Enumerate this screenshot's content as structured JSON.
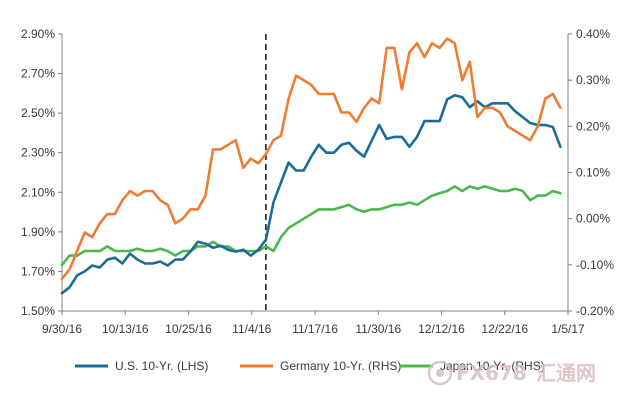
{
  "chart_data": {
    "type": "line",
    "title": "",
    "xlabel": "",
    "ylabel": "",
    "x_ticks": [
      "9/30/16",
      "10/13/16",
      "10/25/16",
      "11/4/16",
      "11/17/16",
      "11/30/16",
      "12/12/16",
      "12/22/16",
      "1/5/17"
    ],
    "x_range": [
      0,
      67
    ],
    "y_left": {
      "range": [
        1.5,
        2.9
      ],
      "ticks": [
        "1.50%",
        "1.70%",
        "1.90%",
        "2.10%",
        "2.30%",
        "2.50%",
        "2.70%",
        "2.90%"
      ]
    },
    "y_right": {
      "range": [
        -0.2,
        0.4
      ],
      "ticks": [
        "-0.20%",
        "-0.10%",
        "0.00%",
        "0.10%",
        "0.20%",
        "0.30%",
        "0.40%"
      ]
    },
    "vertical_marker": {
      "x": 27,
      "style": "dashed"
    },
    "grid": false,
    "legend_position": "bottom",
    "series": [
      {
        "name": "U.S. 10-Yr. (LHS)",
        "axis": "left",
        "color": "#1a6d99",
        "values": [
          1.59,
          1.62,
          1.68,
          1.7,
          1.73,
          1.72,
          1.76,
          1.77,
          1.74,
          1.79,
          1.76,
          1.74,
          1.74,
          1.75,
          1.73,
          1.76,
          1.76,
          1.8,
          1.85,
          1.84,
          1.82,
          1.83,
          1.81,
          1.8,
          1.81,
          1.78,
          1.81,
          1.86,
          2.05,
          2.15,
          2.25,
          2.21,
          2.21,
          2.28,
          2.34,
          2.3,
          2.3,
          2.34,
          2.35,
          2.31,
          2.28,
          2.36,
          2.44,
          2.37,
          2.38,
          2.38,
          2.33,
          2.38,
          2.46,
          2.46,
          2.46,
          2.57,
          2.59,
          2.58,
          2.53,
          2.56,
          2.53,
          2.55,
          2.55,
          2.55,
          2.51,
          2.48,
          2.45,
          2.44,
          2.44,
          2.43,
          2.33
        ]
      },
      {
        "name": "Germany 10-Yr. (RHS)",
        "axis": "right",
        "color": "#f07c33",
        "values": [
          -0.13,
          -0.11,
          -0.07,
          -0.03,
          -0.04,
          -0.01,
          0.01,
          0.01,
          0.04,
          0.06,
          0.05,
          0.06,
          0.06,
          0.04,
          0.03,
          -0.01,
          0.0,
          0.02,
          0.02,
          0.05,
          0.15,
          0.15,
          0.16,
          0.17,
          0.11,
          0.13,
          0.12,
          0.14,
          0.17,
          0.18,
          0.26,
          0.31,
          0.3,
          0.29,
          0.27,
          0.27,
          0.27,
          0.23,
          0.23,
          0.21,
          0.24,
          0.26,
          0.25,
          0.37,
          0.37,
          0.28,
          0.36,
          0.38,
          0.35,
          0.38,
          0.37,
          0.39,
          0.38,
          0.3,
          0.34,
          0.22,
          0.24,
          0.24,
          0.23,
          0.2,
          0.19,
          0.18,
          0.17,
          0.2,
          0.26,
          0.27,
          0.24
        ]
      },
      {
        "name": "Japan 10-Yr. (RHS)",
        "axis": "right",
        "color": "#4cb84c",
        "values": [
          -0.1,
          -0.08,
          -0.08,
          -0.07,
          -0.07,
          -0.07,
          -0.06,
          -0.07,
          -0.07,
          -0.07,
          -0.065,
          -0.07,
          -0.07,
          -0.065,
          -0.07,
          -0.08,
          -0.07,
          -0.07,
          -0.06,
          -0.06,
          -0.05,
          -0.06,
          -0.06,
          -0.07,
          -0.07,
          -0.07,
          -0.07,
          -0.06,
          -0.07,
          -0.04,
          -0.02,
          -0.01,
          0.0,
          0.01,
          0.02,
          0.02,
          0.02,
          0.025,
          0.03,
          0.02,
          0.015,
          0.02,
          0.02,
          0.025,
          0.03,
          0.03,
          0.035,
          0.03,
          0.04,
          0.05,
          0.055,
          0.06,
          0.07,
          0.06,
          0.07,
          0.065,
          0.07,
          0.065,
          0.06,
          0.06,
          0.065,
          0.06,
          0.04,
          0.05,
          0.05,
          0.06,
          0.055
        ]
      }
    ]
  },
  "watermark": {
    "text": "FX678",
    "text_cn": "汇通网",
    "color": "#d9bcbf"
  }
}
